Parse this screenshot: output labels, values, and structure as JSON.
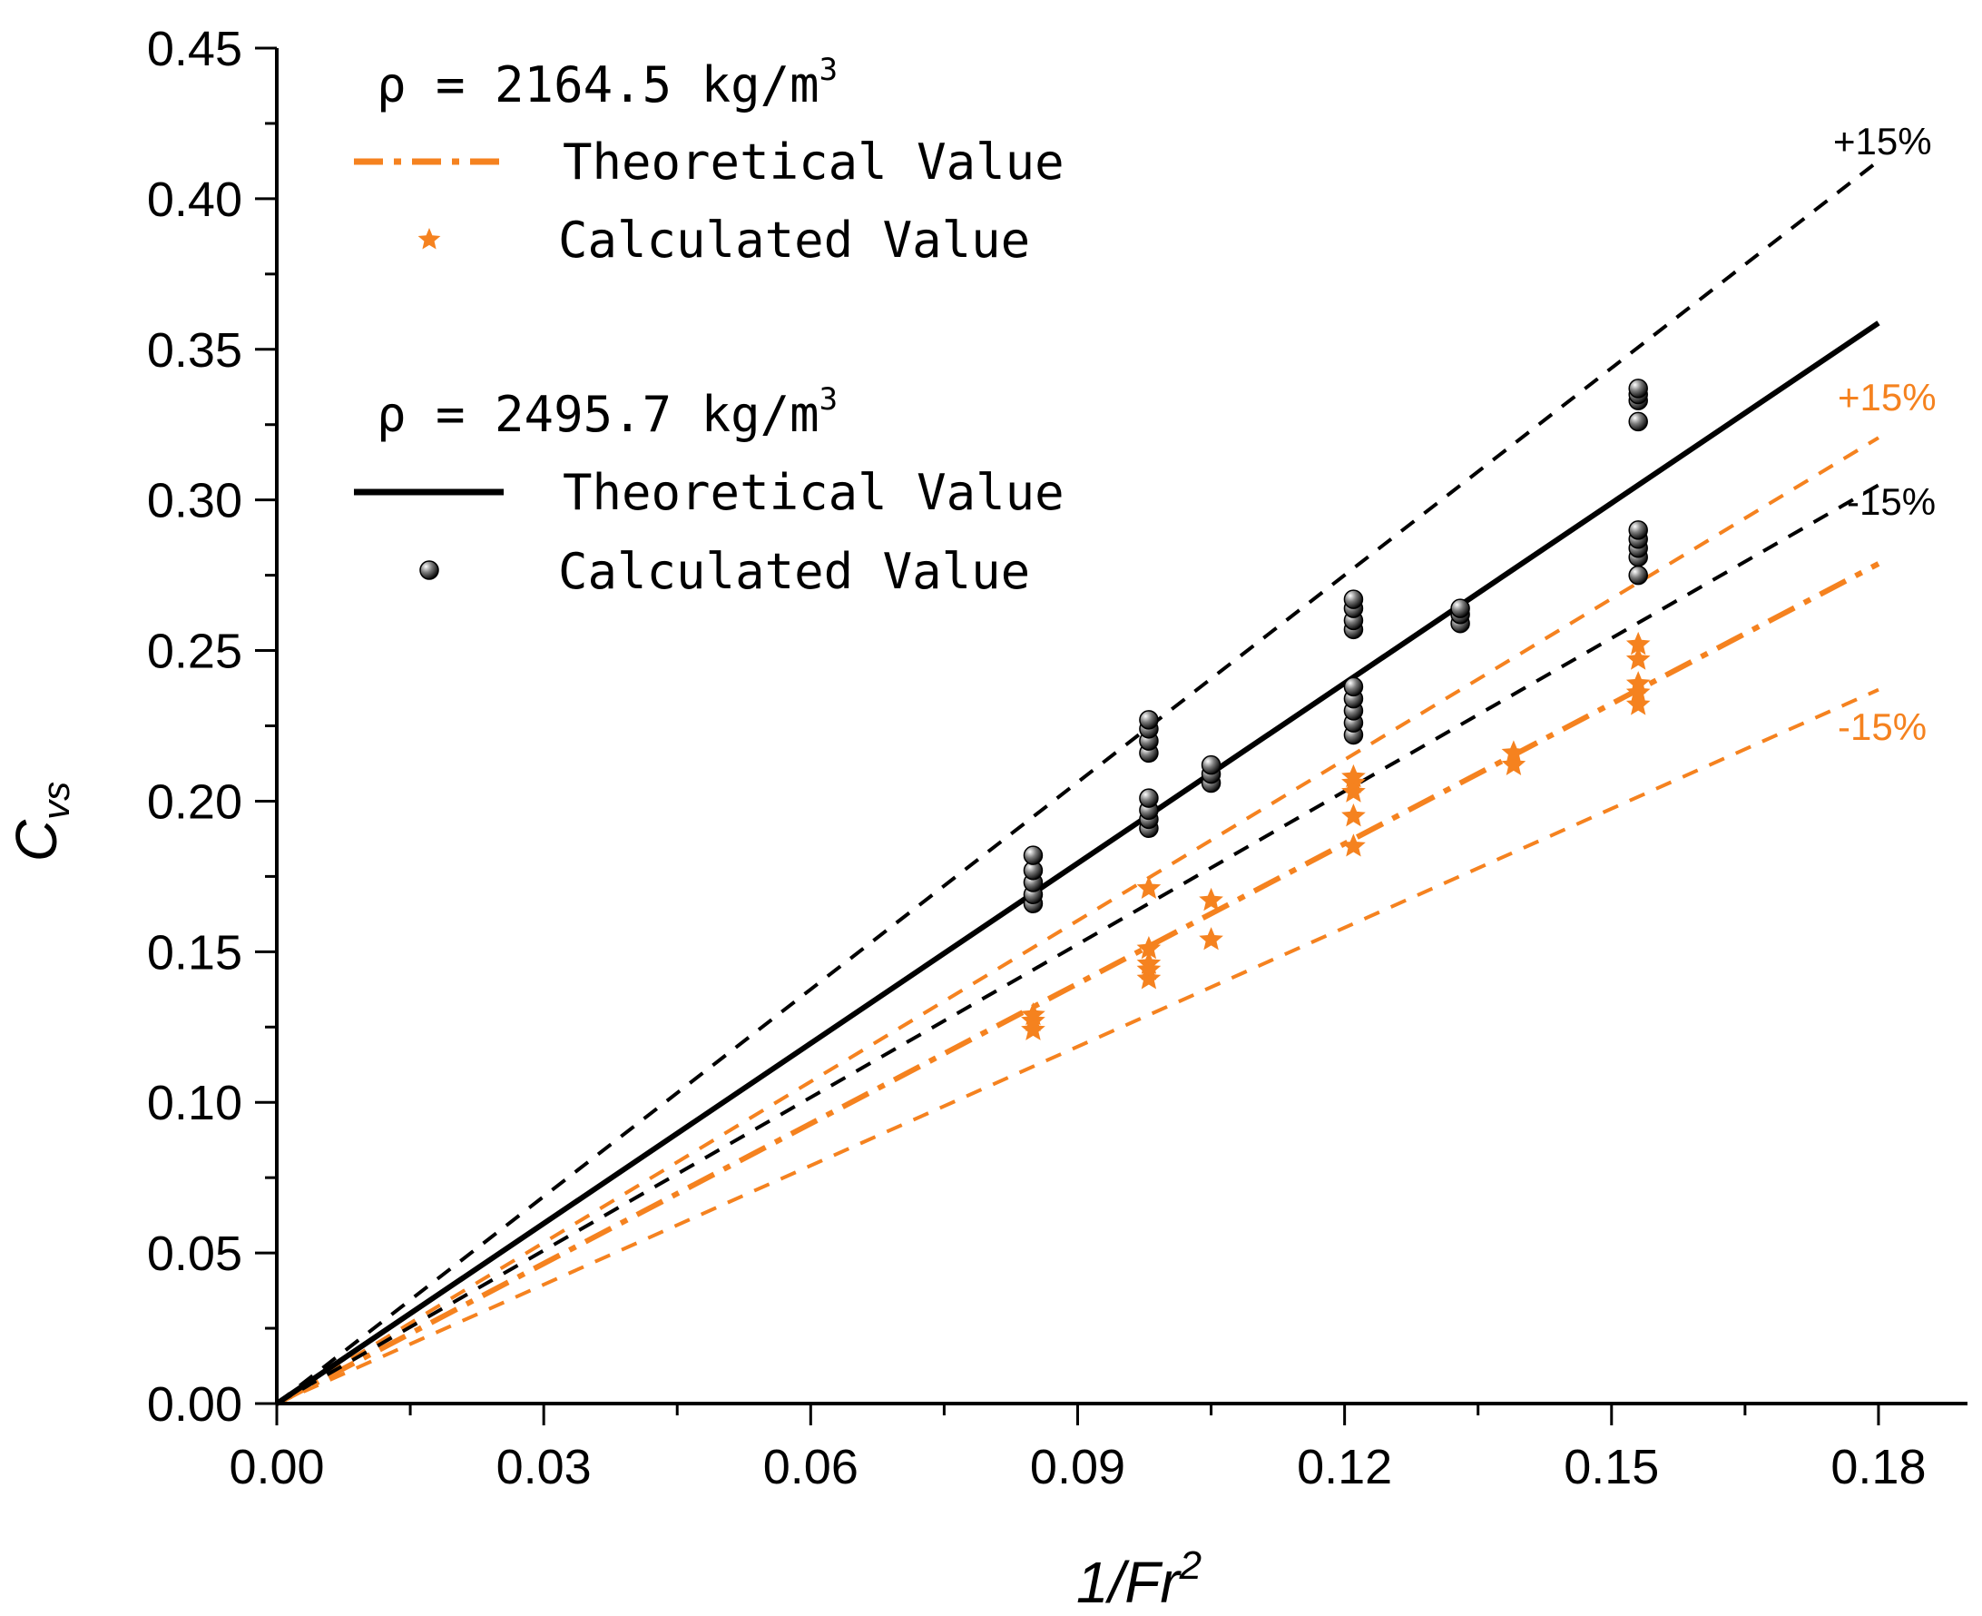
{
  "chart_data": {
    "type": "scatter",
    "xlabel": "1/Fr",
    "xlabel_sup": "2",
    "ylabel": "C",
    "ylabel_sub": "vs",
    "xlim": [
      0,
      0.19
    ],
    "ylim": [
      0,
      0.45
    ],
    "x_ticks": [
      "0.00",
      "0.03",
      "0.06",
      "0.09",
      "0.12",
      "0.15",
      "0.18"
    ],
    "y_ticks": [
      "0.00",
      "0.05",
      "0.10",
      "0.15",
      "0.20",
      "0.25",
      "0.30",
      "0.35",
      "0.40",
      "0.45"
    ],
    "colors": {
      "black": "#000000",
      "orange": "#F5821F"
    },
    "groups": [
      {
        "density_label": "ρ  = 2164.5 kg/m",
        "density_sup": "3",
        "color": "#F5821F",
        "theoretical_label": "Theoretical Value",
        "calculated_label": "Calculated Value",
        "theory_slope": 1.549,
        "plus_label": "+15%",
        "minus_label": "-15%",
        "points": [
          {
            "x": 0.085,
            "y": 0.124
          },
          {
            "x": 0.085,
            "y": 0.127
          },
          {
            "x": 0.085,
            "y": 0.129
          },
          {
            "x": 0.098,
            "y": 0.141
          },
          {
            "x": 0.098,
            "y": 0.144
          },
          {
            "x": 0.098,
            "y": 0.146
          },
          {
            "x": 0.098,
            "y": 0.151
          },
          {
            "x": 0.098,
            "y": 0.171
          },
          {
            "x": 0.105,
            "y": 0.154
          },
          {
            "x": 0.105,
            "y": 0.167
          },
          {
            "x": 0.121,
            "y": 0.185
          },
          {
            "x": 0.121,
            "y": 0.195
          },
          {
            "x": 0.121,
            "y": 0.203
          },
          {
            "x": 0.121,
            "y": 0.206
          },
          {
            "x": 0.121,
            "y": 0.208
          },
          {
            "x": 0.139,
            "y": 0.212
          },
          {
            "x": 0.139,
            "y": 0.216
          },
          {
            "x": 0.153,
            "y": 0.232
          },
          {
            "x": 0.153,
            "y": 0.236
          },
          {
            "x": 0.153,
            "y": 0.239
          },
          {
            "x": 0.153,
            "y": 0.247
          },
          {
            "x": 0.153,
            "y": 0.252
          }
        ]
      },
      {
        "density_label": "ρ  = 2495.7 kg/m",
        "density_sup": "3",
        "color": "#000000",
        "theoretical_label": "Theoretical Value",
        "calculated_label": "Calculated Value",
        "theory_slope": 1.993,
        "plus_label": "+15%",
        "minus_label": "-15%",
        "points": [
          {
            "x": 0.085,
            "y": 0.166
          },
          {
            "x": 0.085,
            "y": 0.169
          },
          {
            "x": 0.085,
            "y": 0.173
          },
          {
            "x": 0.085,
            "y": 0.177
          },
          {
            "x": 0.085,
            "y": 0.182
          },
          {
            "x": 0.098,
            "y": 0.191
          },
          {
            "x": 0.098,
            "y": 0.194
          },
          {
            "x": 0.098,
            "y": 0.197
          },
          {
            "x": 0.098,
            "y": 0.201
          },
          {
            "x": 0.098,
            "y": 0.216
          },
          {
            "x": 0.098,
            "y": 0.22
          },
          {
            "x": 0.098,
            "y": 0.224
          },
          {
            "x": 0.098,
            "y": 0.227
          },
          {
            "x": 0.105,
            "y": 0.206
          },
          {
            "x": 0.105,
            "y": 0.209
          },
          {
            "x": 0.105,
            "y": 0.212
          },
          {
            "x": 0.121,
            "y": 0.222
          },
          {
            "x": 0.121,
            "y": 0.226
          },
          {
            "x": 0.121,
            "y": 0.23
          },
          {
            "x": 0.121,
            "y": 0.234
          },
          {
            "x": 0.121,
            "y": 0.238
          },
          {
            "x": 0.121,
            "y": 0.257
          },
          {
            "x": 0.121,
            "y": 0.26
          },
          {
            "x": 0.121,
            "y": 0.264
          },
          {
            "x": 0.121,
            "y": 0.267
          },
          {
            "x": 0.133,
            "y": 0.259
          },
          {
            "x": 0.133,
            "y": 0.262
          },
          {
            "x": 0.133,
            "y": 0.264
          },
          {
            "x": 0.153,
            "y": 0.275
          },
          {
            "x": 0.153,
            "y": 0.281
          },
          {
            "x": 0.153,
            "y": 0.284
          },
          {
            "x": 0.153,
            "y": 0.287
          },
          {
            "x": 0.153,
            "y": 0.29
          },
          {
            "x": 0.153,
            "y": 0.326
          },
          {
            "x": 0.153,
            "y": 0.333
          },
          {
            "x": 0.153,
            "y": 0.335
          },
          {
            "x": 0.153,
            "y": 0.337
          }
        ]
      }
    ]
  }
}
